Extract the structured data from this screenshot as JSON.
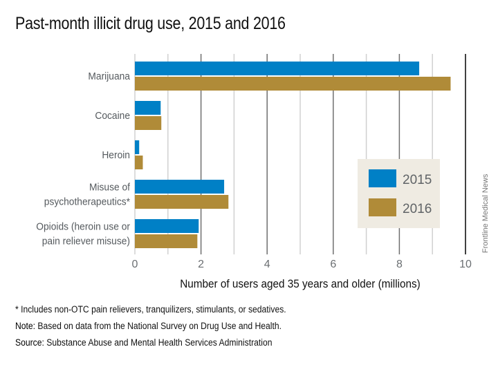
{
  "chart_data": {
    "type": "bar",
    "orientation": "horizontal",
    "title": "Past-month illicit drug use, 2015 and 2016",
    "xlabel": "Number of users aged 35 years and older (millions)",
    "ylabel": "",
    "xlim": [
      0,
      10
    ],
    "xticks": [
      0,
      2,
      4,
      6,
      8,
      10
    ],
    "grid": true,
    "legend_position": "right-middle",
    "categories": [
      [
        "Marijuana"
      ],
      [
        "Cocaine"
      ],
      [
        "Heroin"
      ],
      [
        "Misuse of",
        "psychotherapeutics*"
      ],
      [
        "Opioids (heroin use or",
        "pain reliever misuse)"
      ]
    ],
    "series": [
      {
        "name": "2015",
        "color": "#0080c6",
        "values": [
          8.6,
          0.78,
          0.13,
          2.7,
          1.93
        ]
      },
      {
        "name": "2016",
        "color": "#b08b38",
        "values": [
          9.55,
          0.8,
          0.24,
          2.83,
          1.89
        ]
      }
    ]
  },
  "colors": {
    "legend_bg": "#efebe2",
    "grid_major": "#6e6e6e",
    "grid_minor": "#d0d0d0",
    "axis_end": "#111111"
  },
  "credit": "Frontline Medical News",
  "footnotes": {
    "asterisk": "* Includes non-OTC pain relievers, tranquilizers, stimulants, or sedatives.",
    "note_label": "Note:",
    "note_text": " Based on data from the National Survey on Drug Use and Health.",
    "source_label": "Source:",
    "source_text": " Substance Abuse and Mental Health Services Administration"
  }
}
